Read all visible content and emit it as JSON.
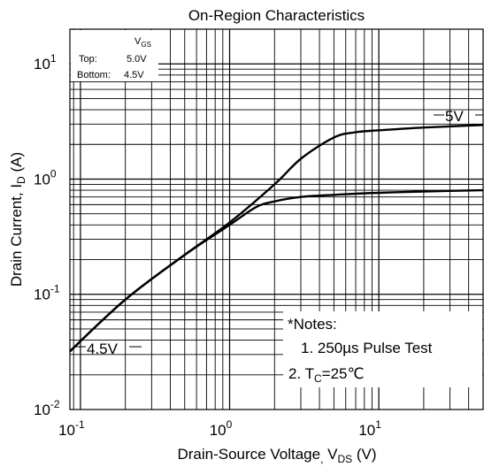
{
  "chart_data": {
    "type": "line",
    "title": "On-Region Characteristics",
    "xlabel": {
      "main": "Drain-Source Voltage",
      "comma": ",",
      "v": "V",
      "sub": "DS",
      "unit": "(V)"
    },
    "ylabel": {
      "main": "Drain Current, I",
      "sub": "D",
      "unit": " (A)"
    },
    "x_scale": "log",
    "y_scale": "log",
    "xlim": [
      0.085,
      50
    ],
    "ylim": [
      0.01,
      20
    ],
    "x_ticks": [
      {
        "value": 0.1,
        "base": "10",
        "exp": "-1"
      },
      {
        "value": 1,
        "base": "10",
        "exp": "0"
      },
      {
        "value": 10,
        "base": "10",
        "exp": "1"
      }
    ],
    "y_ticks": [
      {
        "value": 0.01,
        "base": "10",
        "exp": "-2"
      },
      {
        "value": 0.1,
        "base": "10",
        "exp": "-1"
      },
      {
        "value": 1,
        "base": "10",
        "exp": "0"
      },
      {
        "value": 10,
        "base": "10",
        "exp": "1"
      }
    ],
    "grid": true,
    "series": [
      {
        "name": "5V",
        "x": [
          0.085,
          0.2,
          0.5,
          1,
          2,
          3,
          5,
          7,
          10,
          20,
          50
        ],
        "y": [
          0.032,
          0.09,
          0.22,
          0.42,
          0.9,
          1.5,
          2.3,
          2.55,
          2.65,
          2.8,
          2.95
        ]
      },
      {
        "name": "4.5V",
        "x": [
          0.085,
          0.2,
          0.5,
          1,
          1.5,
          2,
          3,
          5,
          10,
          20,
          50
        ],
        "y": [
          0.032,
          0.09,
          0.22,
          0.4,
          0.57,
          0.64,
          0.7,
          0.73,
          0.76,
          0.78,
          0.8
        ]
      }
    ],
    "curve_labels": {
      "5V": "5V",
      "4.5V": "4.5V"
    },
    "legend_box": {
      "vgs_main": "V",
      "vgs_sub": "GS",
      "top_label": "Top:",
      "top_value": "5.0V",
      "bottom_label": "Bottom:",
      "bottom_value": "4.5V"
    },
    "notes": {
      "heading": "*Notes:",
      "line1": "1. 250µs Pulse Test",
      "line2_prefix": "2. T",
      "line2_sub": "C",
      "line2_suffix": "=25℃"
    }
  }
}
